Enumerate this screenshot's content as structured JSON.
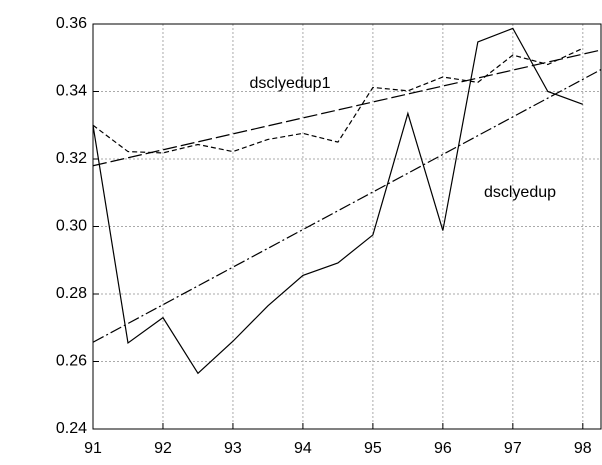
{
  "chart_data": {
    "type": "line",
    "xlim": [
      91,
      98.26
    ],
    "xticks": [
      91,
      92,
      93,
      94,
      95,
      96,
      97,
      98
    ],
    "ylim": [
      0.24,
      0.36
    ],
    "yticks": [
      0.24,
      0.26,
      0.28,
      {
        "value": 0.3,
        "label": "0.30"
      },
      0.32,
      0.34,
      0.36
    ],
    "grid": true,
    "series": [
      {
        "name": "dsclyedup",
        "color": "#000000",
        "style": "solid",
        "x": [
          91,
          91.5,
          92,
          92.5,
          93,
          93.5,
          94,
          94.5,
          95,
          95.5,
          96,
          96.5,
          97,
          97.5,
          98
        ],
        "values": [
          0.33,
          0.2655,
          0.273,
          0.2565,
          0.266,
          0.2765,
          0.2855,
          0.2892,
          0.2975,
          0.3335,
          0.2988,
          0.3547,
          0.3587,
          0.34,
          0.3362
        ]
      },
      {
        "name": "dsclyedup1",
        "color": "#000000",
        "style": "dashed",
        "x": [
          91,
          91.5,
          92,
          92.5,
          93,
          93.5,
          94,
          94.5,
          95,
          95.5,
          96,
          96.5,
          97,
          97.5,
          98
        ],
        "values": [
          0.33,
          0.3222,
          0.3218,
          0.3243,
          0.3222,
          0.3258,
          0.3276,
          0.325,
          0.3412,
          0.3402,
          0.3443,
          0.3427,
          0.3508,
          0.348,
          0.3528
        ]
      },
      {
        "color": "#000000",
        "style": "longdash",
        "x": [
          91,
          98.26
        ],
        "values": [
          0.318,
          0.3523
        ]
      },
      {
        "color": "#000000",
        "style": "dashdot",
        "x": [
          91,
          98.26
        ],
        "values": [
          0.2657,
          0.3465
        ]
      }
    ]
  }
}
